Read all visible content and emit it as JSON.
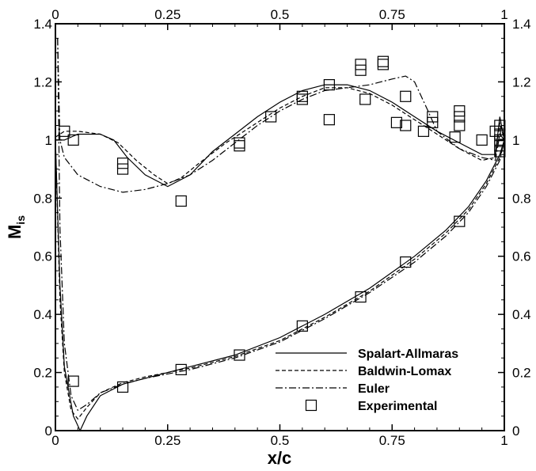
{
  "chart_data": {
    "type": "line",
    "title": "",
    "xlabel": "x/c",
    "ylabel_main": "M",
    "ylabel_sub": "is",
    "xlim": [
      0,
      1
    ],
    "ylim": [
      0,
      1.4
    ],
    "x_ticks": [
      "0",
      "0.25",
      "0.5",
      "0.75",
      "1"
    ],
    "y_ticks": [
      "0",
      "0.2",
      "0.4",
      "0.6",
      "0.8",
      "1",
      "1.2",
      "1.4"
    ],
    "grid": false,
    "legend_position": "bottom-right",
    "series": [
      {
        "name": "Spalart-Allmaras",
        "style": "solid",
        "segments": [
          [
            [
              0.0,
              1.0
            ],
            [
              0.02,
              1.0
            ],
            [
              0.05,
              1.02
            ],
            [
              0.1,
              1.02
            ],
            [
              0.13,
              1.0
            ],
            [
              0.16,
              0.94
            ],
            [
              0.2,
              0.88
            ],
            [
              0.25,
              0.84
            ],
            [
              0.3,
              0.88
            ],
            [
              0.35,
              0.96
            ],
            [
              0.4,
              1.02
            ],
            [
              0.45,
              1.08
            ],
            [
              0.5,
              1.13
            ],
            [
              0.55,
              1.17
            ],
            [
              0.6,
              1.19
            ],
            [
              0.65,
              1.19
            ],
            [
              0.7,
              1.17
            ],
            [
              0.75,
              1.13
            ],
            [
              0.8,
              1.08
            ],
            [
              0.85,
              1.03
            ],
            [
              0.9,
              0.99
            ],
            [
              0.95,
              0.95
            ],
            [
              0.98,
              0.95
            ],
            [
              0.99,
              1.08
            ],
            [
              1.0,
              1.0
            ]
          ],
          [
            [
              0.0,
              1.0
            ],
            [
              0.01,
              0.5
            ],
            [
              0.02,
              0.22
            ],
            [
              0.04,
              0.05
            ],
            [
              0.055,
              0.0
            ],
            [
              0.07,
              0.05
            ],
            [
              0.1,
              0.12
            ],
            [
              0.15,
              0.16
            ],
            [
              0.2,
              0.18
            ],
            [
              0.3,
              0.22
            ],
            [
              0.4,
              0.26
            ],
            [
              0.5,
              0.32
            ],
            [
              0.6,
              0.4
            ],
            [
              0.7,
              0.49
            ],
            [
              0.8,
              0.6
            ],
            [
              0.87,
              0.69
            ],
            [
              0.92,
              0.77
            ],
            [
              0.96,
              0.86
            ],
            [
              0.99,
              0.95
            ],
            [
              1.0,
              1.0
            ]
          ]
        ]
      },
      {
        "name": "Baldwin-Lomax",
        "style": "dashed",
        "segments": [
          [
            [
              0.0,
              1.01
            ],
            [
              0.02,
              1.03
            ],
            [
              0.05,
              1.03
            ],
            [
              0.1,
              1.02
            ],
            [
              0.14,
              0.99
            ],
            [
              0.18,
              0.93
            ],
            [
              0.22,
              0.88
            ],
            [
              0.25,
              0.85
            ],
            [
              0.28,
              0.87
            ],
            [
              0.32,
              0.92
            ],
            [
              0.38,
              0.99
            ],
            [
              0.45,
              1.06
            ],
            [
              0.5,
              1.11
            ],
            [
              0.55,
              1.15
            ],
            [
              0.6,
              1.18
            ],
            [
              0.65,
              1.18
            ],
            [
              0.7,
              1.16
            ],
            [
              0.75,
              1.12
            ],
            [
              0.8,
              1.07
            ],
            [
              0.85,
              1.02
            ],
            [
              0.9,
              0.97
            ],
            [
              0.95,
              0.93
            ],
            [
              0.98,
              0.94
            ],
            [
              0.99,
              1.06
            ],
            [
              1.0,
              1.0
            ]
          ],
          [
            [
              0.0,
              1.0
            ],
            [
              0.01,
              0.45
            ],
            [
              0.02,
              0.2
            ],
            [
              0.035,
              0.07
            ],
            [
              0.05,
              0.04
            ],
            [
              0.07,
              0.08
            ],
            [
              0.1,
              0.13
            ],
            [
              0.15,
              0.165
            ],
            [
              0.2,
              0.185
            ],
            [
              0.3,
              0.215
            ],
            [
              0.4,
              0.255
            ],
            [
              0.5,
              0.31
            ],
            [
              0.6,
              0.39
            ],
            [
              0.7,
              0.48
            ],
            [
              0.8,
              0.59
            ],
            [
              0.87,
              0.68
            ],
            [
              0.92,
              0.76
            ],
            [
              0.96,
              0.85
            ],
            [
              0.99,
              0.94
            ],
            [
              1.0,
              1.0
            ]
          ]
        ]
      },
      {
        "name": "Euler",
        "style": "dashdot",
        "segments": [
          [
            [
              0.005,
              1.35
            ],
            [
              0.01,
              1.0
            ],
            [
              0.02,
              0.94
            ],
            [
              0.05,
              0.88
            ],
            [
              0.1,
              0.84
            ],
            [
              0.15,
              0.82
            ],
            [
              0.2,
              0.83
            ],
            [
              0.25,
              0.85
            ],
            [
              0.3,
              0.88
            ],
            [
              0.35,
              0.93
            ],
            [
              0.4,
              0.99
            ],
            [
              0.45,
              1.05
            ],
            [
              0.5,
              1.1
            ],
            [
              0.55,
              1.14
            ],
            [
              0.6,
              1.17
            ],
            [
              0.65,
              1.18
            ],
            [
              0.7,
              1.19
            ],
            [
              0.75,
              1.21
            ],
            [
              0.78,
              1.22
            ],
            [
              0.8,
              1.2
            ],
            [
              0.83,
              1.1
            ],
            [
              0.85,
              1.03
            ],
            [
              0.9,
              0.97
            ],
            [
              0.95,
              0.94
            ],
            [
              0.98,
              0.93
            ],
            [
              0.99,
              1.02
            ],
            [
              1.0,
              1.0
            ]
          ],
          [
            [
              0.005,
              1.35
            ],
            [
              0.01,
              0.7
            ],
            [
              0.02,
              0.3
            ],
            [
              0.035,
              0.12
            ],
            [
              0.05,
              0.07
            ],
            [
              0.07,
              0.09
            ],
            [
              0.1,
              0.13
            ],
            [
              0.15,
              0.16
            ],
            [
              0.2,
              0.18
            ],
            [
              0.3,
              0.21
            ],
            [
              0.4,
              0.25
            ],
            [
              0.5,
              0.305
            ],
            [
              0.6,
              0.385
            ],
            [
              0.7,
              0.475
            ],
            [
              0.8,
              0.58
            ],
            [
              0.87,
              0.67
            ],
            [
              0.92,
              0.75
            ],
            [
              0.96,
              0.84
            ],
            [
              0.99,
              0.93
            ],
            [
              1.0,
              1.0
            ]
          ]
        ]
      },
      {
        "name": "Experimental",
        "style": "square-markers",
        "points": [
          [
            0.02,
            1.03
          ],
          [
            0.04,
            1.0
          ],
          [
            0.15,
            0.92
          ],
          [
            0.15,
            0.9
          ],
          [
            0.28,
            0.79
          ],
          [
            0.41,
            0.99
          ],
          [
            0.41,
            0.98
          ],
          [
            0.48,
            1.08
          ],
          [
            0.55,
            1.15
          ],
          [
            0.55,
            1.14
          ],
          [
            0.61,
            1.19
          ],
          [
            0.61,
            1.07
          ],
          [
            0.68,
            1.26
          ],
          [
            0.68,
            1.24
          ],
          [
            0.69,
            1.14
          ],
          [
            0.73,
            1.27
          ],
          [
            0.73,
            1.26
          ],
          [
            0.76,
            1.06
          ],
          [
            0.78,
            1.15
          ],
          [
            0.78,
            1.05
          ],
          [
            0.82,
            1.03
          ],
          [
            0.84,
            1.08
          ],
          [
            0.84,
            1.06
          ],
          [
            0.89,
            1.01
          ],
          [
            0.9,
            1.1
          ],
          [
            0.9,
            1.08
          ],
          [
            0.9,
            1.05
          ],
          [
            0.95,
            1.0
          ],
          [
            0.98,
            1.03
          ],
          [
            0.99,
            1.05
          ],
          [
            0.99,
            1.02
          ],
          [
            0.99,
            1.0
          ],
          [
            0.99,
            0.98
          ],
          [
            0.99,
            0.96
          ],
          [
            0.04,
            0.17
          ],
          [
            0.15,
            0.15
          ],
          [
            0.28,
            0.21
          ],
          [
            0.41,
            0.26
          ],
          [
            0.55,
            0.36
          ],
          [
            0.68,
            0.46
          ],
          [
            0.78,
            0.58
          ],
          [
            0.9,
            0.72
          ]
        ]
      }
    ]
  }
}
